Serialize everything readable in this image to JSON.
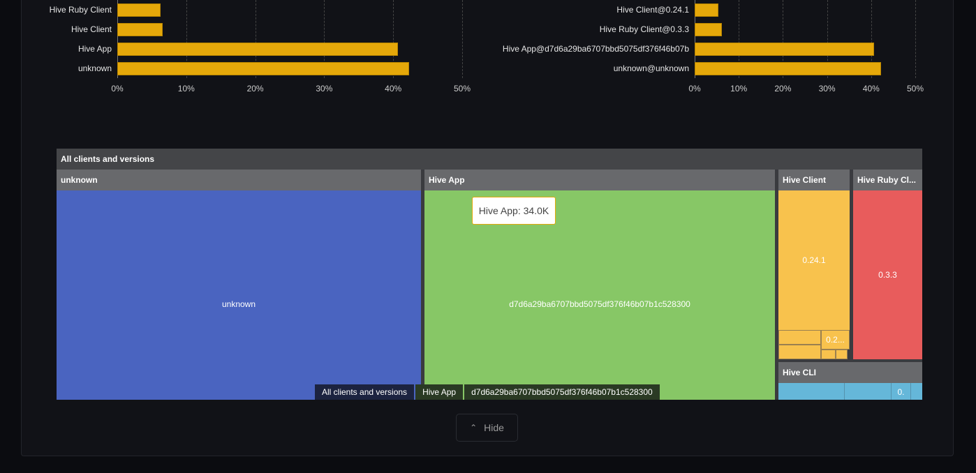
{
  "left_chart": {
    "chart_data": {
      "type": "bar",
      "orientation": "horizontal",
      "categories": [
        "Hive Ruby Client",
        "Hive Client",
        "Hive App",
        "unknown"
      ],
      "values": [
        6.3,
        6.6,
        40.7,
        42.3
      ],
      "xlim": [
        0,
        50
      ],
      "xticks": [
        "0%",
        "10%",
        "20%",
        "30%",
        "40%",
        "50%"
      ],
      "grid": true,
      "color": "#e5a80a"
    }
  },
  "right_chart": {
    "chart_data": {
      "type": "bar",
      "orientation": "horizontal",
      "categories": [
        "Hive Client@0.24.1",
        "Hive Ruby Client@0.3.3",
        "Hive App@d7d6a29ba6707bbd5075df376f46b07b",
        "unknown@unknown"
      ],
      "values": [
        5.4,
        6.2,
        40.7,
        42.2
      ],
      "xlim": [
        0,
        50
      ],
      "xticks": [
        "0%",
        "10%",
        "20%",
        "30%",
        "40%",
        "50%"
      ],
      "grid": true,
      "color": "#e5a80a"
    }
  },
  "treemap": {
    "root": "All clients and versions",
    "groups": [
      {
        "name": "unknown",
        "child": "unknown",
        "color": "#4a64c0"
      },
      {
        "name": "Hive App",
        "child": "d7d6a29ba6707bbd5075df376f46b07b1c528300",
        "color": "#87c766"
      },
      {
        "name": "Hive Client",
        "child": "0.24.1",
        "small": "0.2...",
        "color": "#f8c24d"
      },
      {
        "name": "Hive Ruby Cl...",
        "child": "0.3.3",
        "color": "#e85c5c"
      },
      {
        "name": "Hive CLI",
        "small": "0.",
        "color": "#65b7d9"
      }
    ],
    "tooltip": "Hive App: 34.0K",
    "breadcrumb": [
      "All clients and versions",
      "Hive App",
      "d7d6a29ba6707bbd5075df376f46b07b1c528300"
    ]
  },
  "hide_button": {
    "label": "Hide",
    "icon": "chevron-up-icon"
  }
}
